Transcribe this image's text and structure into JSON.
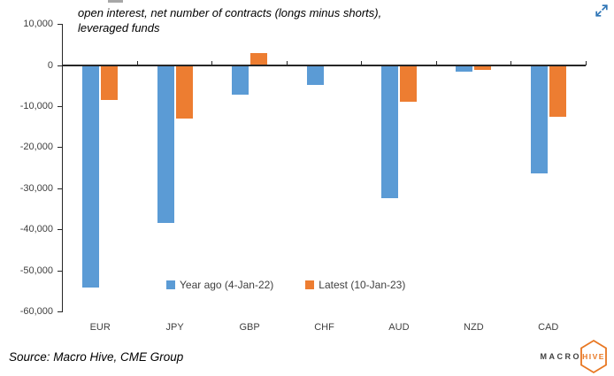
{
  "header": {
    "expand_icon": "expand-arrows",
    "expand_icon_color": "#2E75B6"
  },
  "chart_data": {
    "type": "bar",
    "title_lines": [
      "open interest, net number of contracts (longs minus shorts),",
      "leveraged funds"
    ],
    "title": "open interest, net number of contracts (longs minus shorts), leveraged funds",
    "categories": [
      "EUR",
      "JPY",
      "GBP",
      "CHF",
      "AUD",
      "NZD",
      "CAD"
    ],
    "series": [
      {
        "name": "Year ago (4-Jan-22)",
        "color": "#5B9BD5",
        "values": [
          -54000,
          -38300,
          -7100,
          -4700,
          -32300,
          -1500,
          -26200
        ]
      },
      {
        "name": "Latest (10-Jan-23)",
        "color": "#ED7D31",
        "values": [
          -8400,
          -13000,
          3000,
          -200,
          -8900,
          -1000,
          -12600
        ]
      }
    ],
    "xlabel": "",
    "ylabel": "",
    "ylim": [
      -60000,
      10000
    ],
    "ytick_step": 10000,
    "yticks": [
      {
        "value": 10000,
        "label": "10,000"
      },
      {
        "value": 0,
        "label": "0"
      },
      {
        "value": -10000,
        "label": "-10,000"
      },
      {
        "value": -20000,
        "label": "-20,000"
      },
      {
        "value": -30000,
        "label": "-30,000"
      },
      {
        "value": -40000,
        "label": "-40,000"
      },
      {
        "value": -50000,
        "label": "-50,000"
      },
      {
        "value": -60000,
        "label": "-60,000"
      }
    ],
    "grid": false,
    "legend_position": "inside-bottom-center",
    "axis_color": "#262626",
    "label_color": "#404040"
  },
  "footer": {
    "source": "Source: Macro Hive, CME Group"
  },
  "logo": {
    "text_left": "MACRO",
    "text_right": "HIVE",
    "accent_color": "#E87722",
    "text_color": "#3F3F3F"
  }
}
